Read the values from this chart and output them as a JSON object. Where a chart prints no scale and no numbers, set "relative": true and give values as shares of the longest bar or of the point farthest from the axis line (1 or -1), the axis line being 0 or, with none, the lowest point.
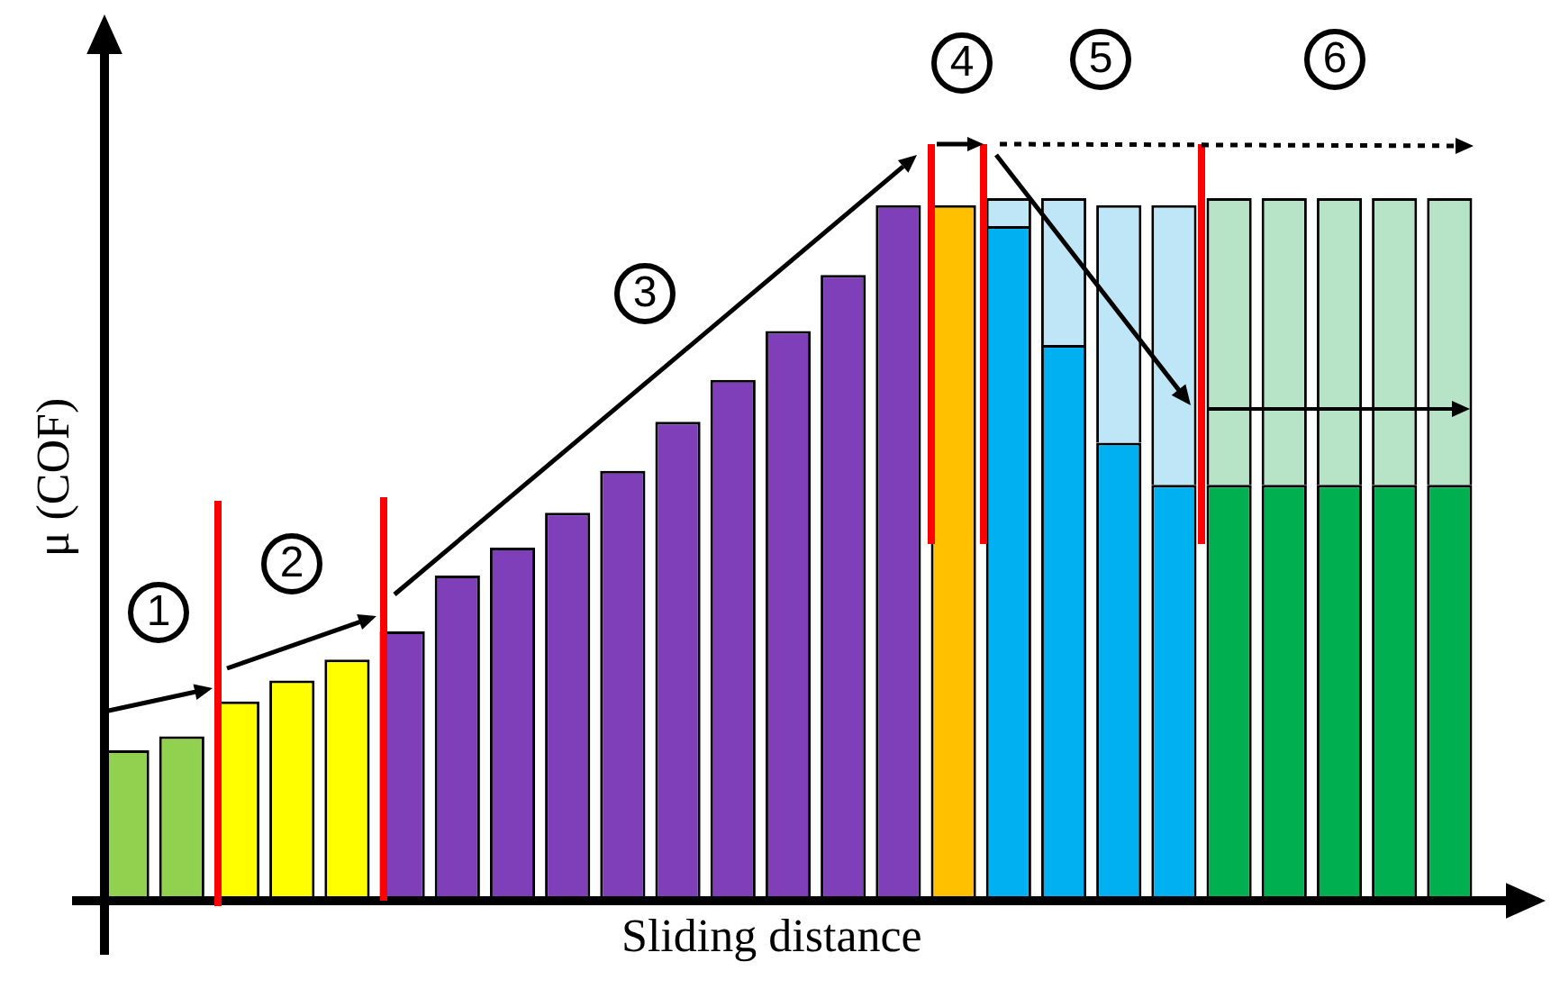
{
  "chart_data": {
    "type": "bar",
    "stacked": true,
    "relative": true,
    "xlabel": "Sliding distance",
    "ylabel": "μ (COF)",
    "categories": [
      null,
      null,
      null,
      null,
      null,
      null,
      null,
      null,
      null,
      null,
      null,
      null,
      null,
      null,
      null,
      null,
      null,
      null,
      null,
      null,
      null,
      null,
      null,
      null,
      null
    ],
    "series": [
      {
        "colors": [
          "#92d050",
          "#92d050",
          "#ffff00",
          "#ffff00",
          "#ffff00",
          "#7f3fb8",
          "#7f3fb8",
          "#7f3fb8",
          "#7f3fb8",
          "#7f3fb8",
          "#7f3fb8",
          "#7f3fb8",
          "#7f3fb8",
          "#7f3fb8",
          "#7f3fb8",
          "#ffc000",
          "#00b0f0",
          "#00b0f0",
          "#00b0f0",
          "#00b0f0",
          "#00b050",
          "#00b050",
          "#00b050",
          "#00b050",
          "#00b050"
        ],
        "values": [
          0.21,
          0.23,
          0.28,
          0.31,
          0.34,
          0.38,
          0.46,
          0.5,
          0.55,
          0.61,
          0.68,
          0.74,
          0.81,
          0.89,
          0.99,
          0.99,
          0.96,
          0.79,
          0.65,
          0.59,
          0.59,
          0.59,
          0.59,
          0.59,
          0.59
        ]
      },
      {
        "colors": [
          "#bfe6f7",
          "#bfe6f7",
          "#bfe6f7",
          "#bfe6f7",
          "#bfe6f7",
          "#bfe6f7",
          "#bfe6f7",
          "#bfe6f7",
          "#bfe6f7",
          "#bfe6f7",
          "#bfe6f7",
          "#bfe6f7",
          "#bfe6f7",
          "#bfe6f7",
          "#bfe6f7",
          "#bfe6f7",
          "#bfe6f7",
          "#bfe6f7",
          "#bfe6f7",
          "#bfe6f7",
          "#b7e4c7",
          "#b7e4c7",
          "#b7e4c7",
          "#b7e4c7",
          "#b7e4c7"
        ],
        "values": [
          null,
          null,
          null,
          null,
          null,
          null,
          null,
          null,
          null,
          null,
          null,
          null,
          null,
          null,
          null,
          null,
          0.04,
          0.21,
          0.34,
          0.4,
          0.41,
          0.41,
          0.41,
          0.41,
          0.41
        ]
      }
    ],
    "annotations": [
      "1",
      "2",
      "3",
      "4",
      "5",
      "6"
    ]
  }
}
